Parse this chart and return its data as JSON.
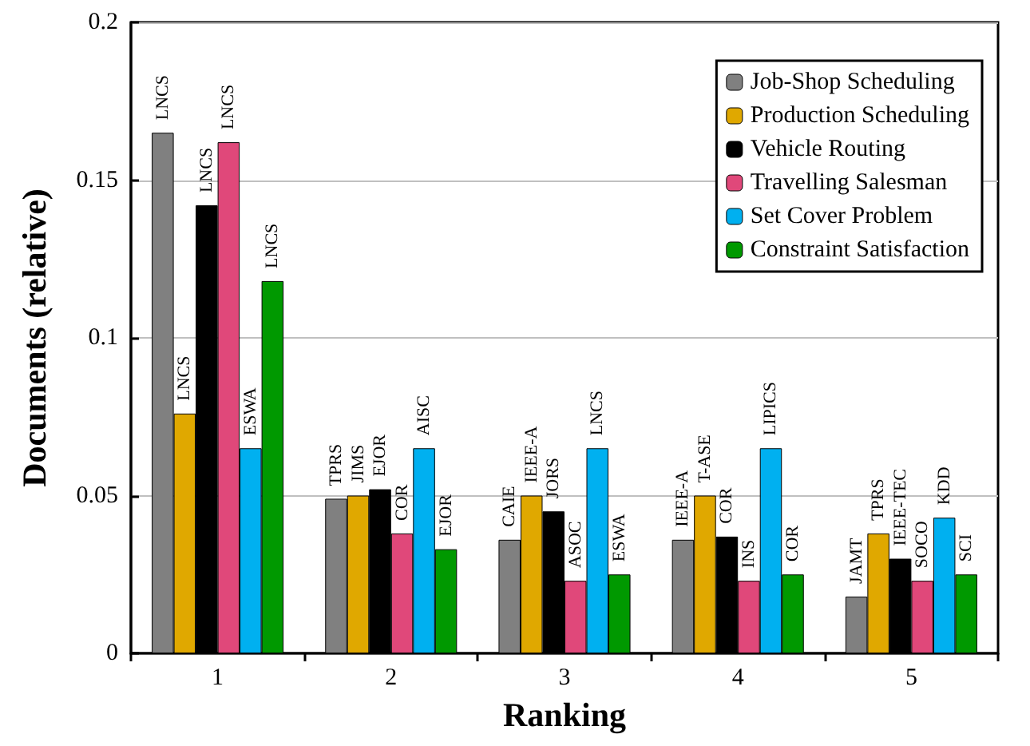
{
  "chart_data": {
    "type": "bar",
    "xlabel": "Ranking",
    "ylabel": "Documents (relative)",
    "categories": [
      "1",
      "2",
      "3",
      "4",
      "5"
    ],
    "series": [
      {
        "name": "Job-Shop Scheduling",
        "color": "#808080",
        "values": [
          0.165,
          0.049,
          0.036,
          0.036,
          0.018
        ],
        "value_labels": [
          "LNCS",
          "TPRS",
          "CAIE",
          "IEEE-A",
          "JAMT"
        ]
      },
      {
        "name": "Production Scheduling",
        "color": "#e0a800",
        "values": [
          0.076,
          0.05,
          0.05,
          0.05,
          0.038
        ],
        "value_labels": [
          "LNCS",
          "JIMS",
          "IEEE-A",
          "T-ASE",
          "TPRS"
        ]
      },
      {
        "name": "Vehicle Routing",
        "color": "#000000",
        "values": [
          0.142,
          0.052,
          0.045,
          0.037,
          0.03
        ],
        "value_labels": [
          "LNCS",
          "EJOR",
          "JORS",
          "COR",
          "IEEE-TEC"
        ]
      },
      {
        "name": "Travelling Salesman",
        "color": "#e0487a",
        "values": [
          0.162,
          0.038,
          0.023,
          0.023,
          0.023
        ],
        "value_labels": [
          "LNCS",
          "COR",
          "ASOC",
          "INS",
          "SOCO"
        ]
      },
      {
        "name": "Set Cover Problem",
        "color": "#00b0f0",
        "values": [
          0.065,
          0.065,
          0.065,
          0.065,
          0.043
        ],
        "value_labels": [
          "ESWA",
          "AISC",
          "LNCS",
          "LIPICS",
          "KDD"
        ]
      },
      {
        "name": "Constraint Satisfaction",
        "color": "#009900",
        "values": [
          0.118,
          0.033,
          0.025,
          0.025,
          0.025
        ],
        "value_labels": [
          "LNCS",
          "EJOR",
          "ESWA",
          "COR",
          "SCI"
        ]
      }
    ],
    "ylim": [
      0,
      0.2
    ],
    "yticks": [
      0,
      0.05,
      0.1,
      0.15,
      0.2
    ],
    "grid": "y",
    "legend": "top right"
  }
}
